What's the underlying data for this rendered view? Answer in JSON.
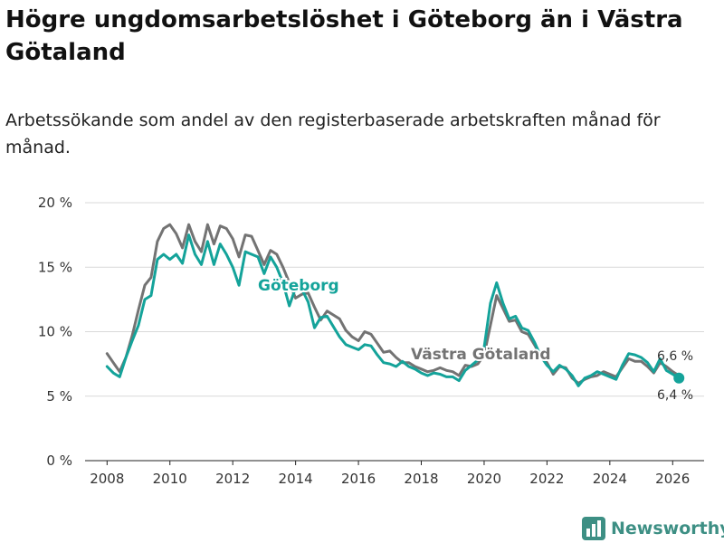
{
  "title": "Högre ungdomsarbetslöshet i Göteborg än i Västra Götaland",
  "subtitle": "Arbetssökande som andel av den registerbaserade arbetskraften månad för månad.",
  "brand": "Newsworthy",
  "colors": {
    "goteborg": "#14a39a",
    "vastra": "#737373",
    "grid": "#d9d9d9",
    "brand": "#3d8f84"
  },
  "chart_data": {
    "type": "line",
    "title": "Högre ungdomsarbetslöshet i Göteborg än i Västra Götaland",
    "ylim": [
      0,
      20
    ],
    "xlim": [
      2007.3,
      2027.0
    ],
    "y_ticks": [
      0,
      5,
      10,
      15,
      20
    ],
    "y_tick_labels": [
      "0 %",
      "5 %",
      "10 %",
      "15 %",
      "20 %"
    ],
    "x_ticks": [
      2008,
      2010,
      2012,
      2014,
      2016,
      2018,
      2020,
      2022,
      2024,
      2026
    ],
    "x_tick_labels": [
      "2008",
      "2010",
      "2012",
      "2014",
      "2016",
      "2018",
      "2020",
      "2022",
      "2024",
      "2026"
    ],
    "grid": "horizontal",
    "series": [
      {
        "name": "Västra Götaland",
        "color": "#737373",
        "label": "Västra Götaland",
        "end_label": "6,6 %",
        "x": [
          2008.0,
          2008.2,
          2008.4,
          2008.6,
          2008.8,
          2009.0,
          2009.2,
          2009.4,
          2009.6,
          2009.8,
          2010.0,
          2010.2,
          2010.4,
          2010.6,
          2010.8,
          2011.0,
          2011.2,
          2011.4,
          2011.6,
          2011.8,
          2012.0,
          2012.2,
          2012.4,
          2012.6,
          2012.8,
          2013.0,
          2013.2,
          2013.4,
          2013.6,
          2013.8,
          2014.0,
          2014.2,
          2014.4,
          2014.6,
          2014.8,
          2015.0,
          2015.2,
          2015.4,
          2015.6,
          2015.8,
          2016.0,
          2016.2,
          2016.4,
          2016.6,
          2016.8,
          2017.0,
          2017.2,
          2017.4,
          2017.6,
          2017.8,
          2018.0,
          2018.2,
          2018.4,
          2018.6,
          2018.8,
          2019.0,
          2019.2,
          2019.4,
          2019.6,
          2019.8,
          2020.0,
          2020.2,
          2020.4,
          2020.6,
          2020.8,
          2021.0,
          2021.2,
          2021.4,
          2021.6,
          2021.8,
          2022.0,
          2022.2,
          2022.4,
          2022.6,
          2022.8,
          2023.0,
          2023.2,
          2023.4,
          2023.6,
          2023.8,
          2024.0,
          2024.2,
          2024.4,
          2024.6,
          2024.8,
          2025.0,
          2025.2,
          2025.4,
          2025.6,
          2025.8,
          2026.0,
          2026.2
        ],
        "y": [
          8.3,
          7.6,
          6.9,
          8.0,
          9.7,
          11.7,
          13.6,
          14.2,
          17.0,
          18.0,
          18.3,
          17.6,
          16.5,
          18.3,
          17.0,
          16.2,
          18.3,
          16.8,
          18.2,
          18.0,
          17.2,
          15.8,
          17.5,
          17.4,
          16.3,
          15.2,
          16.3,
          16.0,
          15.0,
          13.8,
          12.6,
          12.9,
          13.0,
          11.9,
          10.9,
          11.6,
          11.3,
          11.0,
          10.1,
          9.6,
          9.3,
          10.0,
          9.8,
          9.1,
          8.4,
          8.5,
          8.0,
          7.6,
          7.6,
          7.3,
          7.1,
          6.9,
          7.0,
          7.2,
          7.0,
          6.9,
          6.6,
          7.4,
          7.3,
          7.5,
          8.2,
          10.5,
          12.8,
          11.8,
          10.8,
          10.9,
          10.0,
          9.8,
          9.0,
          8.1,
          7.6,
          6.7,
          7.3,
          7.2,
          6.4,
          6.0,
          6.3,
          6.5,
          6.6,
          6.9,
          6.7,
          6.5,
          7.2,
          7.9,
          7.7,
          7.7,
          7.3,
          6.8,
          7.6,
          7.3,
          6.9,
          6.6
        ]
      },
      {
        "name": "Göteborg",
        "color": "#14a39a",
        "label": "Göteborg",
        "end_label": "6,4 %",
        "x": [
          2008.0,
          2008.2,
          2008.4,
          2008.6,
          2008.8,
          2009.0,
          2009.2,
          2009.4,
          2009.6,
          2009.8,
          2010.0,
          2010.2,
          2010.4,
          2010.6,
          2010.8,
          2011.0,
          2011.2,
          2011.4,
          2011.6,
          2011.8,
          2012.0,
          2012.2,
          2012.4,
          2012.6,
          2012.8,
          2013.0,
          2013.2,
          2013.4,
          2013.6,
          2013.8,
          2014.0,
          2014.2,
          2014.4,
          2014.6,
          2014.8,
          2015.0,
          2015.2,
          2015.4,
          2015.6,
          2015.8,
          2016.0,
          2016.2,
          2016.4,
          2016.6,
          2016.8,
          2017.0,
          2017.2,
          2017.4,
          2017.6,
          2017.8,
          2018.0,
          2018.2,
          2018.4,
          2018.6,
          2018.8,
          2019.0,
          2019.2,
          2019.4,
          2019.6,
          2019.8,
          2020.0,
          2020.2,
          2020.4,
          2020.6,
          2020.8,
          2021.0,
          2021.2,
          2021.4,
          2021.6,
          2021.8,
          2022.0,
          2022.2,
          2022.4,
          2022.6,
          2022.8,
          2023.0,
          2023.2,
          2023.4,
          2023.6,
          2023.8,
          2024.0,
          2024.2,
          2024.4,
          2024.6,
          2024.8,
          2025.0,
          2025.2,
          2025.4,
          2025.6,
          2025.8,
          2026.0,
          2026.2
        ],
        "y": [
          7.3,
          6.8,
          6.5,
          8.0,
          9.3,
          10.5,
          12.5,
          12.8,
          15.6,
          16.0,
          15.6,
          16.0,
          15.3,
          17.5,
          16.0,
          15.2,
          17.0,
          15.2,
          16.8,
          16.0,
          15.0,
          13.6,
          16.2,
          16.0,
          15.8,
          14.5,
          15.8,
          15.0,
          13.8,
          12.0,
          13.4,
          13.3,
          12.3,
          10.3,
          11.1,
          11.2,
          10.4,
          9.6,
          9.0,
          8.8,
          8.6,
          9.0,
          8.9,
          8.2,
          7.6,
          7.5,
          7.3,
          7.7,
          7.3,
          7.1,
          6.8,
          6.6,
          6.8,
          6.7,
          6.5,
          6.5,
          6.2,
          7.0,
          7.4,
          7.8,
          8.8,
          12.2,
          13.8,
          12.2,
          11.0,
          11.2,
          10.3,
          10.1,
          9.2,
          8.1,
          7.4,
          6.9,
          7.4,
          7.1,
          6.6,
          5.8,
          6.4,
          6.6,
          6.9,
          6.7,
          6.5,
          6.3,
          7.4,
          8.3,
          8.2,
          8.0,
          7.6,
          6.9,
          7.9,
          7.0,
          6.7,
          6.4
        ]
      }
    ]
  }
}
